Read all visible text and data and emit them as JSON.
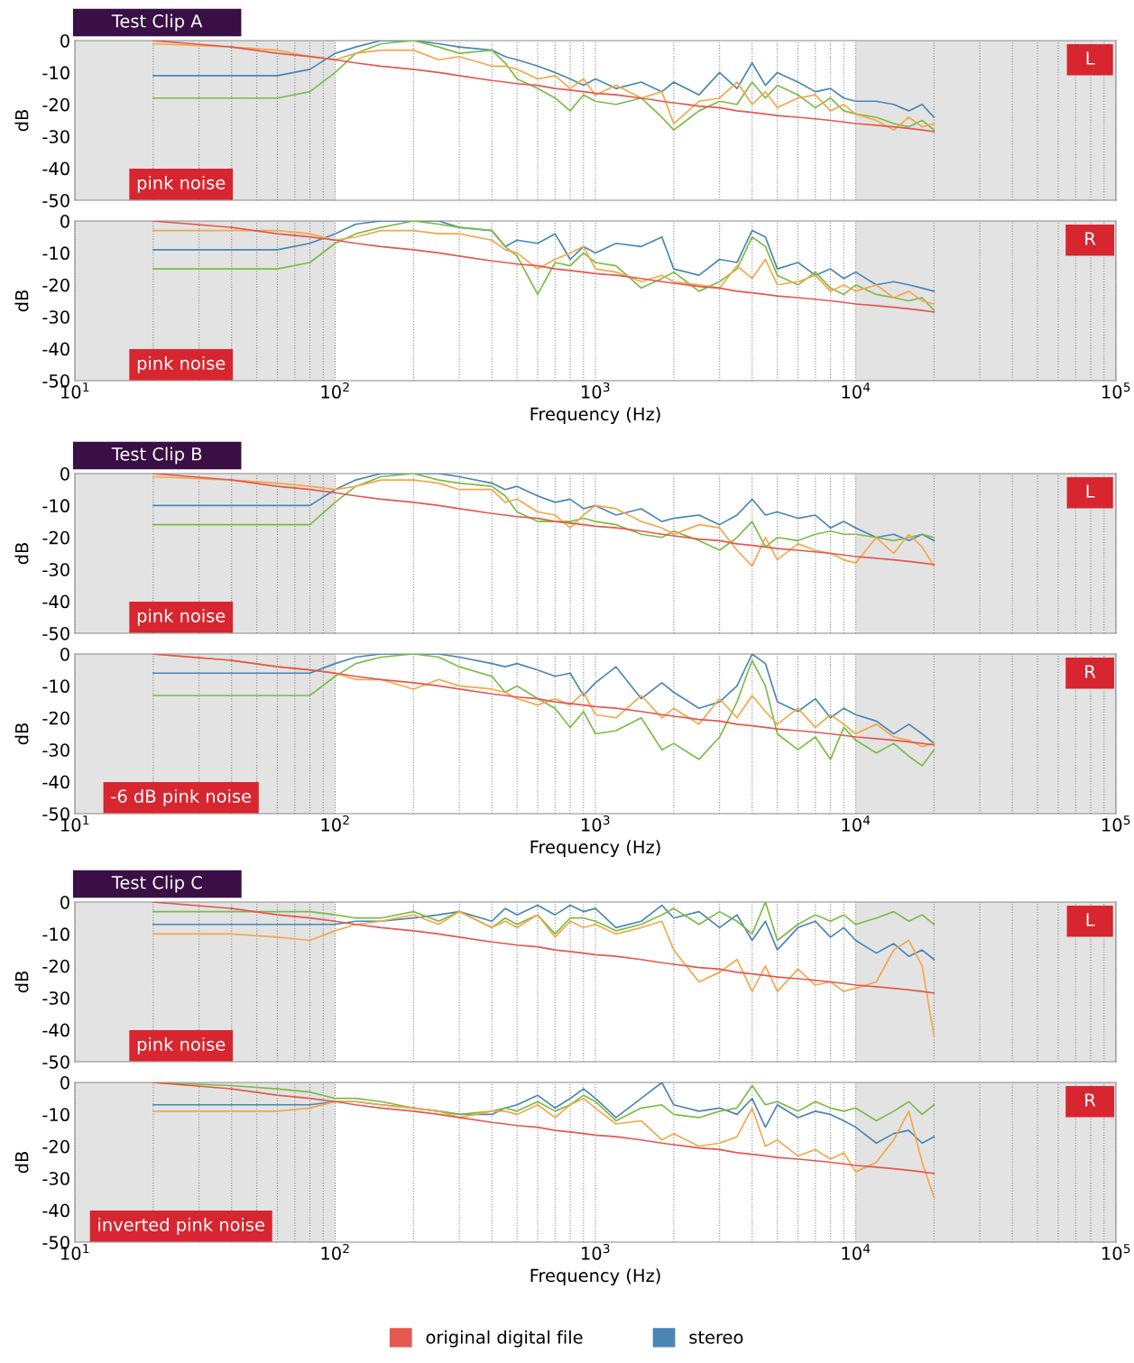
{
  "chart_data": [
    {
      "type": "line",
      "title": "Test Clip A",
      "ylabel": "dB",
      "annotations": [
        "L",
        "pink noise"
      ],
      "tick_labels": "y",
      "grid": "x",
      "xlim": [
        10,
        100000
      ],
      "ylim": [
        -50,
        0
      ],
      "log": "x",
      "xticks": [
        {
          "value": 10,
          "label": null
        },
        {
          "value": 100,
          "label": null
        },
        {
          "value": 1000,
          "label": null
        },
        {
          "value": 10000,
          "label": null
        },
        {
          "value": 100000,
          "label": null
        }
      ],
      "yticks": [
        0,
        -10,
        -20,
        -30,
        -40,
        -50
      ],
      "bands": [
        {
          "axis": "x",
          "from": 10,
          "to": 100,
          "color": "#e3e3e3"
        },
        {
          "axis": "x",
          "from": 10000,
          "to": 100000,
          "color": "#e3e3e3"
        }
      ],
      "x": [
        20,
        40,
        60,
        80,
        100,
        120,
        150,
        200,
        250,
        300,
        400,
        450,
        500,
        600,
        700,
        800,
        900,
        1000,
        1200,
        1500,
        1800,
        2000,
        2500,
        3000,
        3500,
        4000,
        4500,
        5000,
        6000,
        7000,
        8000,
        9000,
        10000,
        12000,
        14000,
        16000,
        18000,
        20000
      ],
      "series": [
        {
          "color": "#4a86b4",
          "values": [
            -11,
            -11,
            -11,
            -9,
            -4,
            -2,
            0,
            0,
            -1,
            -2,
            -3,
            -5,
            -6,
            -8,
            -10,
            -12,
            -14,
            -12,
            -15,
            -13,
            -16,
            -13,
            -17,
            -10,
            -15,
            -7,
            -14,
            -10,
            -13,
            -16,
            -15,
            -18,
            -19,
            -19,
            -20,
            -22,
            -20,
            -24
          ]
        },
        {
          "color": "#7cbc45",
          "values": [
            -18,
            -18,
            -18,
            -16,
            -10,
            -4,
            -1,
            0,
            -2,
            -4,
            -3,
            -7,
            -12,
            -15,
            -18,
            -22,
            -17,
            -19,
            -20,
            -18,
            -24,
            -28,
            -22,
            -19,
            -20,
            -13,
            -18,
            -14,
            -17,
            -21,
            -18,
            -22,
            -23,
            -24,
            -26,
            -27,
            -25,
            -28
          ]
        },
        {
          "color": "#f3a84a",
          "values": [
            -1,
            -2,
            -3,
            -5,
            -6,
            -4,
            -3,
            -3,
            -6,
            -5,
            -8,
            -8,
            -9,
            -12,
            -11,
            -15,
            -12,
            -17,
            -14,
            -18,
            -16,
            -26,
            -19,
            -18,
            -13,
            -20,
            -16,
            -21,
            -18,
            -17,
            -22,
            -20,
            -23,
            -25,
            -28,
            -24,
            -27,
            -26
          ]
        },
        {
          "color": "#e4584f",
          "values": [
            0,
            -2,
            -4,
            -5,
            -6,
            -7,
            -8,
            -9,
            -10,
            -11,
            -12.5,
            -13,
            -13.5,
            -14,
            -15,
            -15.5,
            -16,
            -16.5,
            -17,
            -18,
            -19,
            -19.5,
            -20.5,
            -21,
            -22,
            -22.5,
            -23,
            -23.5,
            -24,
            -24.5,
            -25,
            -25.5,
            -26,
            -26.5,
            -27,
            -27.5,
            -28,
            -28.5
          ]
        }
      ]
    },
    {
      "type": "line",
      "ylabel": "dB",
      "xlabel": "Frequency (Hz)",
      "annotations": [
        "R",
        "pink noise"
      ],
      "grid": "x",
      "xlim": [
        10,
        100000
      ],
      "ylim": [
        -50,
        0
      ],
      "log": "x",
      "xticks": [
        {
          "value": 10,
          "label": "10$^{1}$"
        },
        {
          "value": 100,
          "label": "10$^{2}$"
        },
        {
          "value": 1000,
          "label": "10$^{3}$"
        },
        {
          "value": 10000,
          "label": "10$^{4}$"
        },
        {
          "value": 100000,
          "label": "10$^{5}$"
        }
      ],
      "yticks": [
        0,
        -10,
        -20,
        -30,
        -40,
        -50
      ],
      "bands": [
        {
          "axis": "x",
          "from": 10,
          "to": 100,
          "color": "#e3e3e3"
        },
        {
          "axis": "x",
          "from": 10000,
          "to": 100000,
          "color": "#e3e3e3"
        }
      ],
      "x": [
        20,
        40,
        60,
        80,
        100,
        120,
        150,
        200,
        250,
        300,
        400,
        450,
        500,
        600,
        700,
        800,
        900,
        1000,
        1200,
        1500,
        1800,
        2000,
        2500,
        3000,
        3500,
        4000,
        4500,
        5000,
        6000,
        7000,
        8000,
        9000,
        10000,
        12000,
        14000,
        16000,
        18000,
        20000
      ],
      "series": [
        {
          "color": "#4a86b4",
          "values": [
            -9,
            -9,
            -9,
            -7,
            -4,
            -1,
            0,
            0,
            0,
            -2,
            -3,
            -8,
            -6,
            -7,
            -4,
            -12,
            -8,
            -10,
            -7,
            -8,
            -5,
            -15,
            -17,
            -12,
            -13,
            -3,
            -5,
            -15,
            -13,
            -17,
            -15,
            -18,
            -16,
            -20,
            -19,
            -20,
            -21,
            -22
          ]
        },
        {
          "color": "#7cbc45",
          "values": [
            -15,
            -15,
            -15,
            -13,
            -7,
            -4,
            -2,
            0,
            -1,
            -2,
            -3,
            -8,
            -11,
            -23,
            -13,
            -14,
            -10,
            -13,
            -14,
            -21,
            -18,
            -16,
            -22,
            -19,
            -15,
            -5,
            -8,
            -17,
            -20,
            -16,
            -21,
            -23,
            -20,
            -23,
            -24,
            -25,
            -24,
            -28
          ]
        },
        {
          "color": "#f3a84a",
          "values": [
            -3,
            -3,
            -3,
            -4,
            -6,
            -5,
            -3,
            -3,
            -4,
            -4,
            -6,
            -9,
            -10,
            -15,
            -12,
            -10,
            -8,
            -15,
            -16,
            -19,
            -17,
            -19,
            -20,
            -21,
            -14,
            -18,
            -12,
            -20,
            -19,
            -17,
            -22,
            -20,
            -22,
            -20,
            -24,
            -22,
            -25,
            -26
          ]
        },
        {
          "color": "#e4584f",
          "values": [
            0,
            -2,
            -4,
            -5,
            -6,
            -7,
            -8,
            -9,
            -10,
            -11,
            -12.5,
            -13,
            -13.5,
            -14,
            -15,
            -15.5,
            -16,
            -16.5,
            -17,
            -18,
            -19,
            -19.5,
            -20.5,
            -21,
            -22,
            -22.5,
            -23,
            -23.5,
            -24,
            -24.5,
            -25,
            -25.5,
            -26,
            -26.5,
            -27,
            -27.5,
            -28,
            -28.5
          ]
        }
      ]
    },
    {
      "type": "line",
      "title": "Test Clip B",
      "ylabel": "dB",
      "annotations": [
        "L",
        "pink noise"
      ],
      "tick_labels": "y",
      "grid": "x",
      "xlim": [
        10,
        100000
      ],
      "ylim": [
        -50,
        0
      ],
      "log": "x",
      "xticks": [
        {
          "value": 10,
          "label": null
        },
        {
          "value": 100,
          "label": null
        },
        {
          "value": 1000,
          "label": null
        },
        {
          "value": 10000,
          "label": null
        },
        {
          "value": 100000,
          "label": null
        }
      ],
      "yticks": [
        0,
        -10,
        -20,
        -30,
        -40,
        -50
      ],
      "bands": [
        {
          "axis": "x",
          "from": 10,
          "to": 100,
          "color": "#e3e3e3"
        },
        {
          "axis": "x",
          "from": 10000,
          "to": 100000,
          "color": "#e3e3e3"
        }
      ],
      "x": [
        20,
        40,
        60,
        80,
        100,
        120,
        150,
        200,
        250,
        300,
        400,
        450,
        500,
        600,
        700,
        800,
        900,
        1000,
        1200,
        1500,
        1800,
        2000,
        2500,
        3000,
        3500,
        4000,
        4500,
        5000,
        6000,
        7000,
        8000,
        9000,
        10000,
        12000,
        14000,
        16000,
        18000,
        20000
      ],
      "series": [
        {
          "color": "#4a86b4",
          "values": [
            -10,
            -10,
            -10,
            -10,
            -5,
            -2,
            0,
            0,
            0,
            -1,
            -3,
            -5,
            -4,
            -7,
            -9,
            -8,
            -11,
            -10,
            -13,
            -11,
            -15,
            -14,
            -13,
            -16,
            -13,
            -8,
            -13,
            -12,
            -14,
            -13,
            -17,
            -15,
            -17,
            -20,
            -19,
            -21,
            -19,
            -21
          ]
        },
        {
          "color": "#7cbc45",
          "values": [
            -16,
            -16,
            -16,
            -16,
            -9,
            -4,
            -1,
            0,
            -2,
            -3,
            -4,
            -7,
            -12,
            -15,
            -15,
            -15,
            -14,
            -15,
            -16,
            -19,
            -20,
            -18,
            -21,
            -24,
            -20,
            -15,
            -23,
            -20,
            -21,
            -19,
            -18,
            -19,
            -19,
            -20,
            -21,
            -20,
            -19,
            -20
          ]
        },
        {
          "color": "#f3a84a",
          "values": [
            -1,
            -2,
            -3,
            -4,
            -5,
            -4,
            -2,
            -2,
            -3,
            -5,
            -5,
            -9,
            -8,
            -12,
            -13,
            -17,
            -13,
            -10,
            -11,
            -15,
            -17,
            -19,
            -16,
            -17,
            -24,
            -29,
            -20,
            -27,
            -22,
            -24,
            -25,
            -27,
            -28,
            -20,
            -25,
            -19,
            -23,
            -29
          ]
        },
        {
          "color": "#e4584f",
          "values": [
            0,
            -2,
            -4,
            -5,
            -6,
            -7,
            -8,
            -9,
            -10,
            -11,
            -12.5,
            -13,
            -13.5,
            -14,
            -15,
            -15.5,
            -16,
            -16.5,
            -17,
            -18,
            -19,
            -19.5,
            -20.5,
            -21,
            -22,
            -22.5,
            -23,
            -23.5,
            -24,
            -24.5,
            -25,
            -25.5,
            -26,
            -26.5,
            -27,
            -27.5,
            -28,
            -28.5
          ]
        }
      ]
    },
    {
      "type": "line",
      "ylabel": "dB",
      "xlabel": "Frequency (Hz)",
      "annotations": [
        "R",
        "-6 dB pink noise"
      ],
      "grid": "x",
      "xlim": [
        10,
        100000
      ],
      "ylim": [
        -50,
        0
      ],
      "log": "x",
      "xticks": [
        {
          "value": 10,
          "label": "10$^{1}$"
        },
        {
          "value": 100,
          "label": "10$^{2}$"
        },
        {
          "value": 1000,
          "label": "10$^{3}$"
        },
        {
          "value": 10000,
          "label": "10$^{4}$"
        },
        {
          "value": 100000,
          "label": "10$^{5}$"
        }
      ],
      "yticks": [
        0,
        -10,
        -20,
        -30,
        -40,
        -50
      ],
      "bands": [
        {
          "axis": "x",
          "from": 10,
          "to": 100,
          "color": "#e3e3e3"
        },
        {
          "axis": "x",
          "from": 10000,
          "to": 100000,
          "color": "#e3e3e3"
        }
      ],
      "x": [
        20,
        40,
        60,
        80,
        100,
        120,
        150,
        200,
        250,
        300,
        400,
        450,
        500,
        600,
        700,
        800,
        900,
        1000,
        1200,
        1500,
        1800,
        2000,
        2500,
        3000,
        3500,
        4000,
        4500,
        5000,
        6000,
        7000,
        8000,
        9000,
        10000,
        12000,
        14000,
        16000,
        18000,
        20000
      ],
      "series": [
        {
          "color": "#4a86b4",
          "values": [
            -6,
            -6,
            -6,
            -6,
            -3,
            -1,
            0,
            0,
            0,
            -1,
            -3,
            -4,
            -3,
            -5,
            -7,
            -6,
            -13,
            -9,
            -4,
            -14,
            -9,
            -12,
            -17,
            -15,
            -10,
            0,
            -3,
            -15,
            -18,
            -14,
            -20,
            -17,
            -19,
            -21,
            -25,
            -22,
            -25,
            -28
          ]
        },
        {
          "color": "#7cbc45",
          "values": [
            -13,
            -13,
            -13,
            -13,
            -7,
            -3,
            -1,
            0,
            -1,
            -4,
            -7,
            -12,
            -10,
            -14,
            -17,
            -23,
            -18,
            -25,
            -24,
            -20,
            -30,
            -28,
            -33,
            -26,
            -15,
            -2,
            -10,
            -25,
            -30,
            -26,
            -33,
            -23,
            -27,
            -31,
            -28,
            -32,
            -35,
            -30
          ]
        },
        {
          "color": "#f3a84a",
          "values": [
            0,
            -2,
            -4,
            -5,
            -6,
            -8,
            -8,
            -11,
            -8,
            -10,
            -11,
            -12,
            -14,
            -16,
            -14,
            -16,
            -12,
            -19,
            -20,
            -13,
            -20,
            -17,
            -22,
            -14,
            -20,
            -13,
            -18,
            -22,
            -17,
            -23,
            -19,
            -22,
            -25,
            -22,
            -26,
            -27,
            -29,
            -28
          ]
        },
        {
          "color": "#e4584f",
          "values": [
            0,
            -2,
            -4,
            -5,
            -6,
            -7,
            -8,
            -9,
            -10,
            -11,
            -12.5,
            -13,
            -13.5,
            -14,
            -15,
            -15.5,
            -16,
            -16.5,
            -17,
            -18,
            -19,
            -19.5,
            -20.5,
            -21,
            -22,
            -22.5,
            -23,
            -23.5,
            -24,
            -24.5,
            -25,
            -25.5,
            -26,
            -26.5,
            -27,
            -27.5,
            -28,
            -28.5
          ]
        }
      ]
    },
    {
      "type": "line",
      "title": "Test Clip C",
      "ylabel": "dB",
      "annotations": [
        "L",
        "pink noise"
      ],
      "tick_labels": "y",
      "grid": "x",
      "xlim": [
        10,
        100000
      ],
      "ylim": [
        -50,
        0
      ],
      "log": "x",
      "xticks": [
        {
          "value": 10,
          "label": null
        },
        {
          "value": 100,
          "label": null
        },
        {
          "value": 1000,
          "label": null
        },
        {
          "value": 10000,
          "label": null
        },
        {
          "value": 100000,
          "label": null
        }
      ],
      "yticks": [
        0,
        -10,
        -20,
        -30,
        -40,
        -50
      ],
      "bands": [
        {
          "axis": "x",
          "from": 10,
          "to": 100,
          "color": "#e3e3e3"
        },
        {
          "axis": "x",
          "from": 10000,
          "to": 100000,
          "color": "#e3e3e3"
        }
      ],
      "x": [
        20,
        40,
        60,
        80,
        100,
        120,
        150,
        200,
        250,
        300,
        400,
        450,
        500,
        600,
        700,
        800,
        900,
        1000,
        1200,
        1500,
        1800,
        2000,
        2500,
        3000,
        3500,
        4000,
        4500,
        5000,
        6000,
        7000,
        8000,
        9000,
        10000,
        12000,
        14000,
        16000,
        18000,
        20000
      ],
      "series": [
        {
          "color": "#4a86b4",
          "values": [
            -7,
            -7,
            -7,
            -7,
            -7,
            -6,
            -6,
            -5,
            -4,
            -3,
            -6,
            -2,
            -4,
            -1,
            -4,
            -1,
            -3,
            -2,
            -8,
            -6,
            -1,
            -5,
            -3,
            -8,
            -4,
            -12,
            -6,
            -15,
            -8,
            -6,
            -11,
            -8,
            -12,
            -16,
            -13,
            -17,
            -15,
            -18
          ]
        },
        {
          "color": "#7cbc45",
          "values": [
            -3,
            -3,
            -3,
            -3,
            -4,
            -5,
            -5,
            -3,
            -6,
            -3,
            -8,
            -5,
            -7,
            -4,
            -10,
            -5,
            -5,
            -6,
            -9,
            -7,
            -4,
            -2,
            -7,
            -3,
            -6,
            -10,
            0,
            -12,
            -7,
            -4,
            -6,
            -4,
            -7,
            -5,
            -3,
            -6,
            -4,
            -7
          ]
        },
        {
          "color": "#f3a84a",
          "values": [
            -10,
            -10,
            -11,
            -12,
            -9,
            -7,
            -6,
            -4,
            -7,
            -3,
            -8,
            -6,
            -8,
            -4,
            -11,
            -6,
            -8,
            -7,
            -10,
            -8,
            -6,
            -15,
            -25,
            -22,
            -18,
            -28,
            -20,
            -28,
            -21,
            -26,
            -25,
            -28,
            -27,
            -25,
            -15,
            -12,
            -20,
            -42
          ]
        },
        {
          "color": "#e4584f",
          "values": [
            0,
            -2,
            -4,
            -5,
            -6,
            -7,
            -8,
            -9,
            -10,
            -11,
            -12.5,
            -13,
            -13.5,
            -14,
            -15,
            -15.5,
            -16,
            -16.5,
            -17,
            -18,
            -19,
            -19.5,
            -20.5,
            -21,
            -22,
            -22.5,
            -23,
            -23.5,
            -24,
            -24.5,
            -25,
            -25.5,
            -26,
            -26.5,
            -27,
            -27.5,
            -28,
            -28.5
          ]
        }
      ]
    },
    {
      "type": "line",
      "ylabel": "dB",
      "xlabel": "Frequency (Hz)",
      "annotations": [
        "R",
        "inverted pink noise"
      ],
      "grid": "x",
      "legend": "bottom",
      "xlim": [
        10,
        100000
      ],
      "ylim": [
        -50,
        0
      ],
      "log": "x",
      "xticks": [
        {
          "value": 10,
          "label": "10$^{1}$"
        },
        {
          "value": 100,
          "label": "10$^{2}$"
        },
        {
          "value": 1000,
          "label": "10$^{3}$"
        },
        {
          "value": 10000,
          "label": "10$^{4}$"
        },
        {
          "value": 100000,
          "label": "10$^{5}$"
        }
      ],
      "yticks": [
        0,
        -10,
        -20,
        -30,
        -40,
        -50
      ],
      "bands": [
        {
          "axis": "x",
          "from": 10,
          "to": 100,
          "color": "#e3e3e3"
        },
        {
          "axis": "x",
          "from": 10000,
          "to": 100000,
          "color": "#e3e3e3"
        }
      ],
      "x": [
        20,
        40,
        60,
        80,
        100,
        120,
        150,
        200,
        250,
        300,
        400,
        450,
        500,
        600,
        700,
        800,
        900,
        1000,
        1200,
        1500,
        1800,
        2000,
        2500,
        3000,
        3500,
        4000,
        4500,
        5000,
        6000,
        7000,
        8000,
        9000,
        10000,
        12000,
        14000,
        16000,
        18000,
        20000
      ],
      "series": [
        {
          "name": "stereo",
          "color": "#4a86b4",
          "values": [
            -7,
            -7,
            -7,
            -7,
            -6,
            -6,
            -7,
            -8,
            -9,
            -10,
            -10,
            -8,
            -7,
            -4,
            -8,
            -5,
            -2,
            -5,
            -11,
            -5,
            0,
            -7,
            -9,
            -8,
            -10,
            -5,
            -14,
            -7,
            -11,
            -9,
            -10,
            -12,
            -14,
            -19,
            -16,
            -15,
            -19,
            -17
          ]
        },
        {
          "color": "#7cbc45",
          "values": [
            0,
            -1,
            -2,
            -3,
            -5,
            -5,
            -6,
            -8,
            -9,
            -10,
            -9,
            -8,
            -9,
            -6,
            -9,
            -7,
            -4,
            -6,
            -12,
            -8,
            -7,
            -10,
            -11,
            -9,
            -8,
            -1,
            -7,
            -6,
            -9,
            -6,
            -8,
            -9,
            -8,
            -12,
            -9,
            -6,
            -10,
            -7
          ]
        },
        {
          "color": "#f3a84a",
          "values": [
            -9,
            -9,
            -9,
            -8,
            -6,
            -6,
            -7,
            -8,
            -9,
            -11,
            -9,
            -9,
            -10,
            -7,
            -11,
            -7,
            -5,
            -8,
            -13,
            -12,
            -18,
            -16,
            -20,
            -19,
            -17,
            -8,
            -20,
            -18,
            -23,
            -21,
            -24,
            -22,
            -28,
            -25,
            -18,
            -9,
            -25,
            -36
          ]
        },
        {
          "name": "original digital file",
          "color": "#e4584f",
          "values": [
            0,
            -2,
            -4,
            -5,
            -6,
            -7,
            -8,
            -9,
            -10,
            -11,
            -12.5,
            -13,
            -13.5,
            -14,
            -15,
            -15.5,
            -16,
            -16.5,
            -17,
            -18,
            -19,
            -19.5,
            -20.5,
            -21,
            -22,
            -22.5,
            -23,
            -23.5,
            -24,
            -24.5,
            -25,
            -25.5,
            -26,
            -26.5,
            -27,
            -27.5,
            -28,
            -28.5
          ]
        }
      ]
    }
  ]
}
